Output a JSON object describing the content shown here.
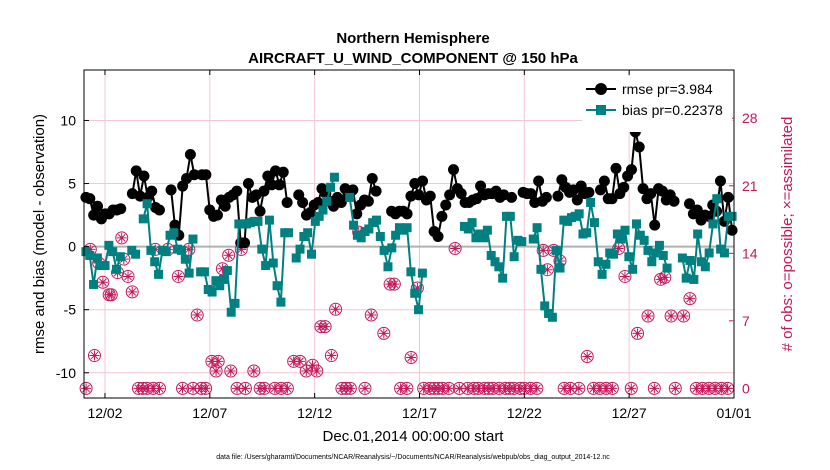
{
  "chart_data": {
    "type": "line",
    "title": "Northern Hemisphere",
    "subtitle": "AIRCRAFT_U_WIND_COMPONENT @ 150 hPa",
    "xlabel": "Dec.01,2014 00:00:00 start",
    "ylabel": "rmse and bias (model - observation)",
    "ylabel_right": "# of obs: o=possible; ×=assimilated",
    "xlim": [
      0,
      31
    ],
    "ylim": [
      -12,
      14
    ],
    "ylim_right": [
      -1,
      33
    ],
    "xticks": [
      1,
      6,
      11,
      16,
      21,
      26,
      31
    ],
    "xtick_labels": [
      "12/02",
      "12/07",
      "12/12",
      "12/17",
      "12/22",
      "12/27",
      "01/01"
    ],
    "yticks": [
      -10,
      -5,
      0,
      5,
      10
    ],
    "yticks_right": [
      0,
      7,
      14,
      21,
      28
    ],
    "zero_line": 0,
    "grid": true,
    "legend_position": "top-right",
    "colors": {
      "rmse": "#000000",
      "bias": "#008080",
      "obs": "#c2185b",
      "zero": "#b0b0b0",
      "grid": "#f5c6d4"
    },
    "series": [
      {
        "name": "rmse pr=3.984",
        "marker": "circle",
        "values": [
          3.9,
          3.8,
          2.5,
          3.2,
          2.2,
          2.6,
          2.6,
          2.9,
          2.9,
          3.0,
          null,
          null,
          4.2,
          6.0,
          4.0,
          5.6,
          3.9,
          4.4,
          3.1,
          2.9,
          null,
          null,
          4.5,
          1.7,
          0.9,
          4.8,
          5.4,
          7.3,
          5.7,
          null,
          5.7,
          5.7,
          2.9,
          2.4,
          2.5,
          3.7,
          3.2,
          3.9,
          4.1,
          4.4,
          0.3,
          0.3,
          5.0,
          3.9,
          4.1,
          2.8,
          4.4,
          5.6,
          4.9,
          6.0,
          4.9,
          5.9,
          3.5,
          null,
          null,
          4.1,
          3.5,
          2.5,
          2.7,
          3.3,
          3.5,
          4.6,
          4.2,
          3.6,
          3.2,
          3.9,
          3.5,
          4.6,
          4.0,
          4.5,
          2.6,
          3.3,
          3.7,
          3.6,
          5.4,
          4.4,
          null,
          null,
          null,
          2.8,
          2.6,
          2.8,
          2.8,
          2.6,
          4.0,
          5.0,
          4.1,
          5.2,
          3.7,
          4.0,
          1.2,
          0.8,
          2.4,
          3.3,
          4.1,
          6.1,
          4.6,
          4.2,
          3.5,
          3.5,
          3.7,
          3.8,
          4.8,
          4.1,
          4.2,
          4.2,
          4.4,
          3.9,
          4.1,
          null,
          3.9,
          null,
          null,
          4.3,
          4.2,
          4.2,
          3.5,
          5.2,
          3.6,
          3.9,
          null,
          null,
          4.0,
          5.3,
          4.7,
          4.3,
          4.5,
          3.7,
          4.8,
          4.2,
          4.3,
          null,
          null,
          4.5,
          5.2,
          3.8,
          3.8,
          6.2,
          4.2,
          4.7,
          5.6,
          6.1,
          9.1,
          7.9,
          4.6,
          3.8,
          4.2,
          1.7,
          4.6,
          4.4,
          3.7,
          4.1,
          3.6,
          null,
          null,
          null,
          3.4,
          2.6,
          2.9,
          2.1,
          2.5,
          2.4,
          3.3,
          2.8,
          5.2,
          2.0,
          3.9,
          1.3
        ],
        "color": "#000000"
      },
      {
        "name": "bias pr=0.22378",
        "marker": "square",
        "values": [
          -0.4,
          -0.7,
          -3.0,
          -0.9,
          -1.5,
          -1.5,
          0.1,
          -0.4,
          -1.8,
          -0.8,
          null,
          null,
          -0.3,
          -0.6,
          null,
          2.2,
          3.4,
          -0.3,
          -1.2,
          -2.2,
          -0.3,
          -0.4,
          0.9,
          1.1,
          -0.2,
          -0.3,
          -1.0,
          -2.1,
          0.6,
          null,
          -2.0,
          -2.0,
          -3.4,
          -3.6,
          -2.7,
          -3.1,
          -2.6,
          -1.9,
          -5.2,
          -4.5,
          1.8,
          1.8,
          1.8,
          1.9,
          2.0,
          2.0,
          -0.2,
          -1.5,
          2.1,
          -1.3,
          -3.1,
          -4.4,
          1.1,
          1.1,
          null,
          -0.9,
          -0.2,
          0.8,
          1.1,
          -0.6,
          2.0,
          2.4,
          2.9,
          3.6,
          4.7,
          5.5,
          null,
          null,
          null,
          3.9,
          1.7,
          0.9,
          0.7,
          1.2,
          1.4,
          1.9,
          2.1,
          0.8,
          -0.3,
          -1.6,
          -0.1,
          0.9,
          1.5,
          1.3,
          1.5,
          -2.0,
          -3.7,
          -5.0,
          -2.1,
          null,
          null,
          null,
          null,
          null,
          null,
          null,
          null,
          null,
          null,
          1.6,
          1.4,
          1.9,
          0.7,
          1.0,
          0.7,
          1.3,
          -0.7,
          -1.2,
          -1.6,
          -2.5,
          2.4,
          2.4,
          -0.8,
          0.5,
          0.4,
          null,
          null,
          0.6,
          1.5,
          -1.8,
          -4.7,
          -5.3,
          -5.6,
          -0.3,
          -1.7,
          2.1,
          2.0,
          2.3,
          2.4,
          2.6,
          1.0,
          1.1,
          3.5,
          1.9,
          -1.2,
          -2.2,
          -1.4,
          -0.5,
          -0.6,
          1.0,
          0.6,
          1.3,
          -0.8,
          -1.8,
          1.8,
          0.9,
          0.5,
          -0.3,
          -1.2,
          -0.5,
          0.1,
          -0.7,
          -1.7,
          null,
          null,
          null,
          -0.9,
          -2.5,
          -1.1,
          -2.6,
          1.0,
          -1.2,
          -1.6,
          -0.5,
          1.8,
          3.8,
          -0.2,
          -0.5,
          2.4,
          2.4
        ],
        "color": "#008080"
      }
    ],
    "obs_possible": [
      [
        0.1,
        0
      ],
      [
        0.3,
        14.4
      ],
      [
        0.5,
        3.4
      ],
      [
        0.7,
        13.0
      ],
      [
        0.9,
        11.0
      ],
      [
        1.2,
        9.7
      ],
      [
        1.3,
        9.7
      ],
      [
        1.6,
        12.0
      ],
      [
        1.8,
        15.6
      ],
      [
        1.9,
        13.4
      ],
      [
        2.1,
        11.6
      ],
      [
        2.3,
        10.0
      ],
      [
        2.6,
        0
      ],
      [
        2.8,
        0
      ],
      [
        3.0,
        0
      ],
      [
        3.3,
        0
      ],
      [
        3.4,
        14.4
      ],
      [
        3.6,
        0
      ],
      [
        4.0,
        14.4
      ],
      [
        4.5,
        11.6
      ],
      [
        4.7,
        0
      ],
      [
        5.0,
        14.4
      ],
      [
        5.2,
        0
      ],
      [
        5.4,
        7.6
      ],
      [
        5.6,
        0
      ],
      [
        5.8,
        0
      ],
      [
        6.1,
        2.8
      ],
      [
        6.3,
        1.8
      ],
      [
        6.4,
        2.8
      ],
      [
        6.6,
        12.4
      ],
      [
        6.9,
        13.8
      ],
      [
        7.0,
        1.8
      ],
      [
        7.3,
        0
      ],
      [
        7.5,
        14.4
      ],
      [
        7.7,
        0
      ],
      [
        8.1,
        1.8
      ],
      [
        8.4,
        0
      ],
      [
        8.6,
        0
      ],
      [
        9.1,
        0
      ],
      [
        9.4,
        0
      ],
      [
        9.7,
        0
      ],
      [
        10.0,
        2.8
      ],
      [
        10.3,
        2.8
      ],
      [
        10.6,
        1.8
      ],
      [
        10.9,
        2.4
      ],
      [
        11.1,
        1.8
      ],
      [
        11.3,
        6.4
      ],
      [
        11.5,
        6.4
      ],
      [
        11.8,
        3.4
      ],
      [
        12.0,
        8.2
      ],
      [
        12.3,
        0
      ],
      [
        12.5,
        0
      ],
      [
        12.7,
        0
      ],
      [
        13.1,
        16.2
      ],
      [
        13.4,
        0
      ],
      [
        13.7,
        7.6
      ],
      [
        14.3,
        5.7
      ],
      [
        14.6,
        10.8
      ],
      [
        14.8,
        10.8
      ],
      [
        15.1,
        0
      ],
      [
        15.4,
        0
      ],
      [
        15.6,
        3.2
      ],
      [
        15.9,
        10.4
      ],
      [
        16.2,
        0
      ],
      [
        16.5,
        0
      ],
      [
        16.7,
        0
      ],
      [
        16.9,
        0
      ],
      [
        17.1,
        0
      ],
      [
        17.4,
        0
      ],
      [
        17.7,
        14.5
      ],
      [
        17.9,
        0
      ],
      [
        18.3,
        0
      ],
      [
        18.6,
        0
      ],
      [
        18.8,
        0
      ],
      [
        19.1,
        0
      ],
      [
        19.3,
        0
      ],
      [
        19.5,
        0
      ],
      [
        19.8,
        0
      ],
      [
        20.1,
        0
      ],
      [
        20.3,
        0
      ],
      [
        20.5,
        0
      ],
      [
        20.8,
        0
      ],
      [
        21.0,
        0
      ],
      [
        21.3,
        0
      ],
      [
        21.6,
        0
      ],
      [
        21.9,
        14.3
      ],
      [
        22.1,
        12.3
      ],
      [
        22.4,
        14.3
      ],
      [
        22.7,
        13.2
      ],
      [
        22.9,
        0
      ],
      [
        23.2,
        0
      ],
      [
        23.6,
        0
      ],
      [
        24.0,
        3.3
      ],
      [
        24.3,
        0
      ],
      [
        24.6,
        0
      ],
      [
        24.9,
        0
      ],
      [
        25.2,
        0
      ],
      [
        25.5,
        14.5
      ],
      [
        25.8,
        11.6
      ],
      [
        26.1,
        0
      ],
      [
        26.4,
        5.7
      ],
      [
        26.9,
        7.5
      ],
      [
        27.2,
        0
      ],
      [
        27.5,
        11.3
      ],
      [
        27.7,
        11.5
      ],
      [
        28.0,
        7.5
      ],
      [
        28.2,
        0
      ],
      [
        28.6,
        7.5
      ],
      [
        28.9,
        9.3
      ],
      [
        29.2,
        0
      ],
      [
        29.5,
        0
      ],
      [
        29.8,
        0
      ],
      [
        30.1,
        0
      ],
      [
        30.4,
        0
      ],
      [
        30.7,
        0
      ]
    ],
    "obs_assimilated": [
      [
        0.1,
        0
      ],
      [
        0.3,
        14.4
      ],
      [
        0.5,
        3.4
      ],
      [
        0.7,
        13.0
      ],
      [
        0.9,
        11.0
      ],
      [
        1.2,
        9.7
      ],
      [
        1.3,
        9.7
      ],
      [
        1.6,
        12.0
      ],
      [
        1.8,
        15.6
      ],
      [
        1.9,
        13.4
      ],
      [
        2.1,
        11.6
      ],
      [
        2.3,
        10.0
      ],
      [
        2.6,
        0
      ],
      [
        2.8,
        0
      ],
      [
        3.0,
        0
      ],
      [
        3.3,
        0
      ],
      [
        3.4,
        14.4
      ],
      [
        3.6,
        0
      ],
      [
        4.0,
        14.4
      ],
      [
        4.5,
        11.6
      ],
      [
        4.7,
        0
      ],
      [
        5.0,
        14.4
      ],
      [
        5.2,
        0
      ],
      [
        5.4,
        7.6
      ],
      [
        5.6,
        0
      ],
      [
        5.8,
        0
      ],
      [
        6.1,
        2.8
      ],
      [
        6.3,
        1.8
      ],
      [
        6.4,
        2.8
      ],
      [
        6.6,
        12.4
      ],
      [
        6.9,
        13.8
      ],
      [
        7.0,
        1.8
      ],
      [
        7.3,
        0
      ],
      [
        7.5,
        14.4
      ],
      [
        7.7,
        0
      ],
      [
        8.1,
        1.8
      ],
      [
        8.4,
        0
      ],
      [
        8.6,
        0
      ],
      [
        9.1,
        0
      ],
      [
        9.4,
        0
      ],
      [
        9.7,
        0
      ],
      [
        10.0,
        2.8
      ],
      [
        10.3,
        2.8
      ],
      [
        10.6,
        1.8
      ],
      [
        10.9,
        2.4
      ],
      [
        11.1,
        1.8
      ],
      [
        11.3,
        6.4
      ],
      [
        11.5,
        6.4
      ],
      [
        11.8,
        3.4
      ],
      [
        12.0,
        8.2
      ],
      [
        12.3,
        0
      ],
      [
        12.5,
        0
      ],
      [
        12.7,
        0
      ],
      [
        13.1,
        16.2
      ],
      [
        13.4,
        0
      ],
      [
        13.7,
        7.6
      ],
      [
        14.3,
        5.7
      ],
      [
        14.6,
        10.8
      ],
      [
        14.8,
        10.8
      ],
      [
        15.1,
        0
      ],
      [
        15.4,
        0
      ],
      [
        15.6,
        3.2
      ],
      [
        15.9,
        10.4
      ],
      [
        16.2,
        0
      ],
      [
        16.5,
        0
      ],
      [
        16.7,
        0
      ],
      [
        16.9,
        0
      ],
      [
        17.1,
        0
      ],
      [
        17.4,
        0
      ],
      [
        17.7,
        14.5
      ],
      [
        17.9,
        0
      ],
      [
        18.3,
        0
      ],
      [
        18.6,
        0
      ],
      [
        18.8,
        0
      ],
      [
        19.1,
        0
      ],
      [
        19.3,
        0
      ],
      [
        19.5,
        0
      ],
      [
        19.8,
        0
      ],
      [
        20.1,
        0
      ],
      [
        20.3,
        0
      ],
      [
        20.5,
        0
      ],
      [
        20.8,
        0
      ],
      [
        21.0,
        0
      ],
      [
        21.3,
        0
      ],
      [
        21.6,
        0
      ],
      [
        21.9,
        14.3
      ],
      [
        22.1,
        12.3
      ],
      [
        22.4,
        14.3
      ],
      [
        22.7,
        13.2
      ],
      [
        22.9,
        0
      ],
      [
        23.2,
        0
      ],
      [
        23.6,
        0
      ],
      [
        24.0,
        3.3
      ],
      [
        24.3,
        0
      ],
      [
        24.6,
        0
      ],
      [
        24.9,
        0
      ],
      [
        25.2,
        0
      ],
      [
        25.5,
        14.5
      ],
      [
        25.8,
        11.6
      ],
      [
        26.1,
        0
      ],
      [
        26.4,
        5.7
      ],
      [
        26.9,
        7.5
      ],
      [
        27.2,
        0
      ],
      [
        27.5,
        11.3
      ],
      [
        27.7,
        11.5
      ],
      [
        28.0,
        7.5
      ],
      [
        28.2,
        0
      ],
      [
        28.6,
        7.5
      ],
      [
        28.9,
        9.3
      ],
      [
        29.2,
        0
      ],
      [
        29.5,
        0
      ],
      [
        29.8,
        0
      ],
      [
        30.1,
        0
      ],
      [
        30.4,
        0
      ],
      [
        30.7,
        0
      ]
    ],
    "footnote": "data file: /Users/gharamti/Documents/NCAR/Reanalysis/~/Documents/NCAR/Reanalysis/webpub/obs_diag_output_2014-12.nc"
  }
}
